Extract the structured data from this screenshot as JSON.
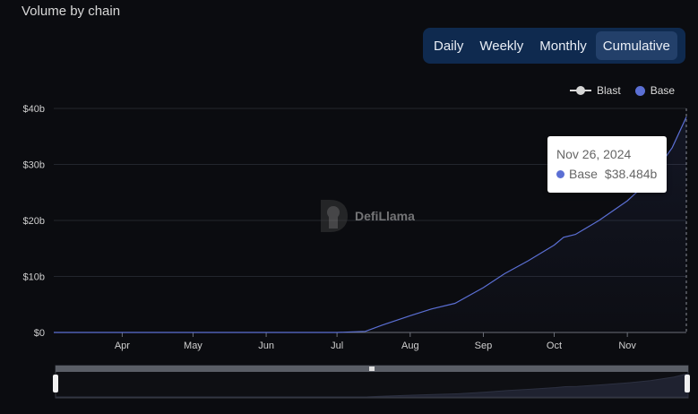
{
  "title": "Volume by chain",
  "toggles": [
    {
      "label": "Daily",
      "active": false
    },
    {
      "label": "Weekly",
      "active": false
    },
    {
      "label": "Monthly",
      "active": false
    },
    {
      "label": "Cumulative",
      "active": true
    }
  ],
  "legend": [
    {
      "name": "Blast",
      "color": "#d7d7d7"
    },
    {
      "name": "Base",
      "color": "#5b6fd4"
    }
  ],
  "tooltip": {
    "date": "Nov 26, 2024",
    "series": "Base",
    "value": "$38.484b"
  },
  "watermark": "DefiLlama",
  "chart_data": {
    "type": "line",
    "ylim": [
      0,
      40
    ],
    "yticks": [
      0,
      10,
      20,
      30,
      40
    ],
    "ytick_labels": [
      "$0",
      "$10b",
      "$20b",
      "$30b",
      "$40b"
    ],
    "xlim": [
      "2024-03-03",
      "2024-11-26"
    ],
    "xticks": [
      "2024-04-01",
      "2024-05-01",
      "2024-06-01",
      "2024-07-01",
      "2024-08-01",
      "2024-09-01",
      "2024-10-01",
      "2024-11-01"
    ],
    "xtick_labels": [
      "Apr",
      "May",
      "Jun",
      "Jul",
      "Aug",
      "Sep",
      "Oct",
      "Nov"
    ],
    "grid": true,
    "legend_position": "top-right",
    "series": [
      {
        "name": "Base",
        "color": "#5b6fd4",
        "x": [
          "2024-03-03",
          "2024-04-01",
          "2024-05-01",
          "2024-06-01",
          "2024-07-01",
          "2024-07-13",
          "2024-07-20",
          "2024-08-01",
          "2024-08-10",
          "2024-08-20",
          "2024-09-01",
          "2024-09-10",
          "2024-09-20",
          "2024-10-01",
          "2024-10-05",
          "2024-10-10",
          "2024-10-20",
          "2024-11-01",
          "2024-11-10",
          "2024-11-20",
          "2024-11-26"
        ],
        "y": [
          0,
          0,
          0,
          0,
          0,
          0.2,
          1.3,
          3.0,
          4.2,
          5.2,
          8.0,
          10.5,
          12.8,
          15.6,
          17.0,
          17.5,
          20.0,
          23.5,
          27.0,
          33.0,
          38.484
        ]
      },
      {
        "name": "Blast",
        "color": "#d7d7d7",
        "x": [],
        "y": []
      }
    ]
  }
}
